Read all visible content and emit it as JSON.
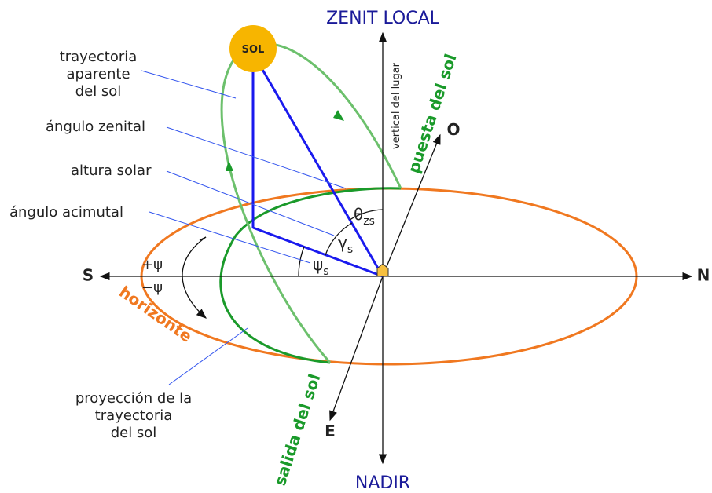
{
  "axes": {
    "zenith": "ZENIT LOCAL",
    "nadir": "NADIR",
    "south": "S",
    "north": "N",
    "west": "O",
    "east": "E",
    "vertical": "vertical del lugar"
  },
  "sun": "SOL",
  "labels": {
    "trajectory": [
      "trayectoria",
      "aparente",
      "del sol"
    ],
    "zenith_angle": "ángulo zenital",
    "solar_altitude": "altura solar",
    "azimuth_angle": "ángulo acimutal",
    "projection": [
      "proyección de la",
      "trayectoria",
      "del sol"
    ],
    "horizon": "horizonte",
    "sunrise": "salida del sol",
    "sunset": "puesta del sol",
    "plus_psi": "+ψ",
    "minus_psi": "−ψ"
  },
  "angles": {
    "theta": {
      "symbol": "θ",
      "sub": "zs"
    },
    "gamma": {
      "symbol": "γ",
      "sub": "s"
    },
    "psi": {
      "symbol": "ψ",
      "sub": "s"
    }
  }
}
